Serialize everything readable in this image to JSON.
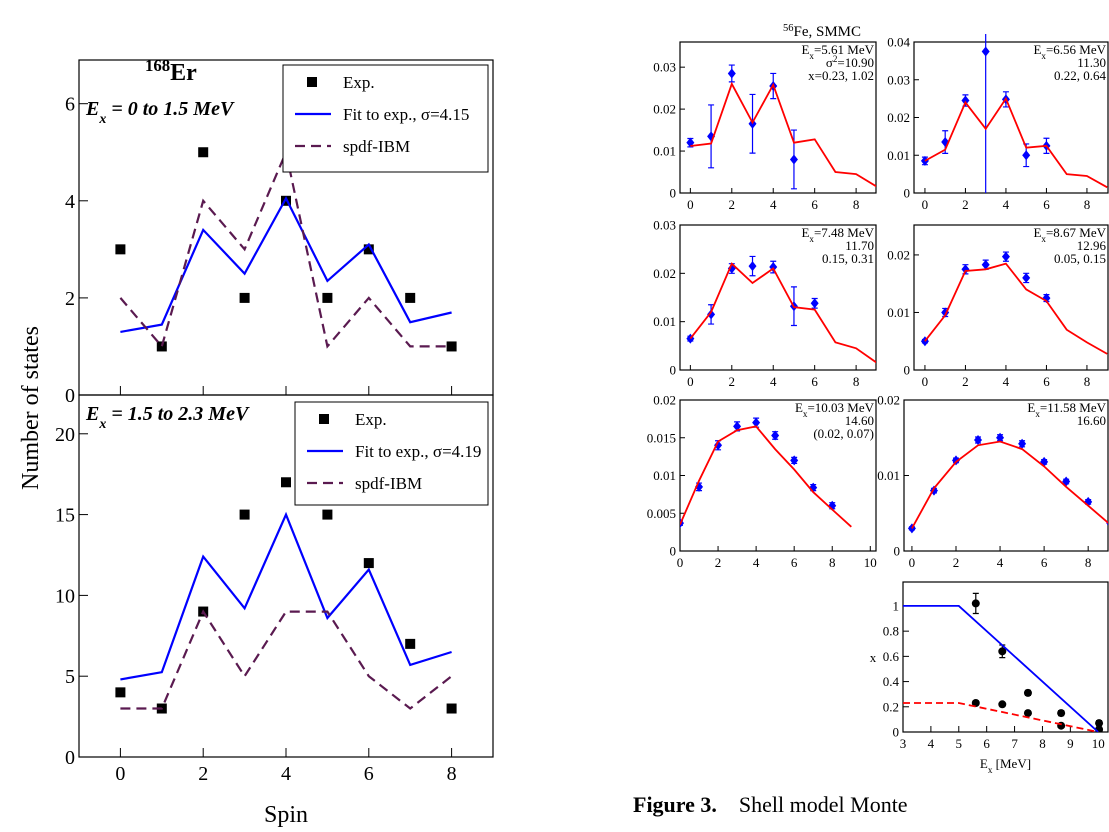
{
  "chart_data": [
    {
      "type": "line",
      "title": {
        "parts": [
          {
            "text": "168",
            "shift": "sup"
          },
          {
            "text": "Er"
          }
        ]
      },
      "annotations": [
        {
          "parts": [
            {
              "text": "E"
            },
            {
              "text": "x",
              "shift": "sub"
            },
            {
              "text": " = 0 to 1.5 MeV"
            }
          ]
        }
      ],
      "ylabel": "Number of states",
      "x": [
        0,
        1,
        2,
        3,
        4,
        5,
        6,
        7,
        8
      ],
      "xlim": [
        -1,
        9
      ],
      "xticks": [
        0,
        2,
        4,
        6,
        8
      ],
      "show_xtick_labels": false,
      "ylim": [
        0,
        6.9
      ],
      "yticks": [
        0,
        2,
        4,
        6
      ],
      "legend": "upper right",
      "series": [
        {
          "name": "Exp.",
          "color": "#000000",
          "style": "markers",
          "marker": "square",
          "values": [
            3,
            1,
            5,
            2,
            4,
            2,
            3,
            2,
            1
          ]
        },
        {
          "name": "Fit to exp., σ=4.15",
          "color": "#0000ff",
          "style": "solid",
          "values": [
            1.3,
            1.45,
            3.4,
            2.5,
            4.05,
            2.35,
            3.1,
            1.5,
            1.7
          ]
        },
        {
          "name": "spdf-IBM",
          "color": "#5a1a50",
          "style": "dashed",
          "values": [
            2,
            1,
            4,
            3,
            5,
            1,
            2,
            1,
            1
          ]
        }
      ]
    },
    {
      "type": "line",
      "annotations": [
        {
          "parts": [
            {
              "text": "E"
            },
            {
              "text": "x",
              "shift": "sub"
            },
            {
              "text": " = 1.5 to 2.3 MeV"
            }
          ]
        }
      ],
      "xlabel": "Spin",
      "x": [
        0,
        1,
        2,
        3,
        4,
        5,
        6,
        7,
        8
      ],
      "xlim": [
        -1,
        9
      ],
      "xticks": [
        0,
        2,
        4,
        6,
        8
      ],
      "ylim": [
        0,
        22.4
      ],
      "yticks": [
        0,
        5,
        10,
        15,
        20
      ],
      "legend": "upper right",
      "series": [
        {
          "name": "Exp.",
          "color": "#000000",
          "style": "markers",
          "marker": "square",
          "values": [
            4,
            3,
            9,
            15,
            17,
            15,
            12,
            7,
            3
          ]
        },
        {
          "name": "Fit to exp., σ=4.19",
          "color": "#0000ff",
          "style": "solid",
          "values": [
            4.8,
            5.25,
            12.4,
            9.2,
            15,
            8.6,
            11.6,
            5.7,
            6.5
          ]
        },
        {
          "name": "spdf-IBM",
          "color": "#5a1a50",
          "style": "dashed",
          "values": [
            3,
            3,
            9,
            5,
            9,
            9,
            5,
            3,
            5
          ]
        }
      ]
    },
    {
      "type": "line",
      "annotations": [
        {
          "parts": [
            {
              "text": "E"
            },
            {
              "text": "x",
              "shift": "sub"
            },
            {
              "text": "=5.61 MeV"
            }
          ]
        },
        {
          "parts": [
            {
              "text": "σ"
            },
            {
              "text": "2",
              "shift": "sup"
            },
            {
              "text": "=10.90"
            }
          ]
        },
        {
          "parts": [
            {
              "text": "x=0.23, 1.02"
            }
          ]
        }
      ],
      "xlim": [
        -0.5,
        8.96
      ],
      "xticks": [
        0,
        2,
        4,
        6,
        8
      ],
      "ylim": [
        0,
        0.036
      ],
      "yticks": [
        0,
        0.01,
        0.02,
        0.03
      ],
      "series": [
        {
          "color": "#0000ff",
          "style": "markers",
          "marker": "diamond",
          "x": [
            0,
            1,
            2,
            3,
            4,
            5
          ],
          "values": [
            0.012,
            0.0135,
            0.0285,
            0.0165,
            0.0255,
            0.008
          ],
          "errors": [
            0.001,
            0.0075,
            0.002,
            0.007,
            0.003,
            0.007
          ]
        },
        {
          "color": "#ff0000",
          "style": "solid",
          "x": [
            0,
            1,
            2,
            3,
            4,
            5,
            6,
            7,
            8,
            9
          ],
          "values": [
            0.0112,
            0.0118,
            0.026,
            0.0168,
            0.0258,
            0.012,
            0.0128,
            0.005,
            0.0045,
            0.0015
          ]
        }
      ]
    },
    {
      "type": "line",
      "annotations": [
        {
          "parts": [
            {
              "text": "E"
            },
            {
              "text": "x",
              "shift": "sub"
            },
            {
              "text": "=6.56 MeV"
            }
          ]
        },
        {
          "parts": [
            {
              "text": "11.30"
            }
          ]
        },
        {
          "parts": [
            {
              "text": "0.22, 0.64"
            }
          ]
        }
      ],
      "xlim": [
        -0.54,
        9.04
      ],
      "xticks": [
        0,
        2,
        4,
        6,
        8
      ],
      "ylim": [
        0,
        0.04
      ],
      "yticks": [
        0,
        0.01,
        0.02,
        0.03,
        0.04
      ],
      "series": [
        {
          "color": "#0000ff",
          "style": "markers",
          "marker": "diamond",
          "x": [
            0,
            1,
            2,
            3,
            4,
            5,
            6
          ],
          "values": [
            0.0085,
            0.0135,
            0.0245,
            0.0375,
            0.0248,
            0.01,
            0.0125
          ],
          "errors": [
            0.001,
            0.003,
            0.0015,
            0.038,
            0.002,
            0.003,
            0.002
          ]
        },
        {
          "color": "#ff0000",
          "style": "solid",
          "x": [
            0,
            1,
            2,
            3,
            4,
            5,
            6,
            7,
            8,
            9
          ],
          "values": [
            0.0085,
            0.0115,
            0.024,
            0.017,
            0.025,
            0.012,
            0.0125,
            0.005,
            0.0045,
            0.0015
          ]
        }
      ]
    },
    {
      "type": "line",
      "annotations": [
        {
          "parts": [
            {
              "text": "E"
            },
            {
              "text": "x",
              "shift": "sub"
            },
            {
              "text": "=7.48 MeV"
            }
          ]
        },
        {
          "parts": [
            {
              "text": "11.70"
            }
          ]
        },
        {
          "parts": [
            {
              "text": "0.15, 0.31"
            }
          ]
        }
      ],
      "xlim": [
        -0.5,
        8.96
      ],
      "xticks": [
        0,
        2,
        4,
        6,
        8
      ],
      "ylim": [
        0,
        0.03
      ],
      "yticks": [
        0,
        0.01,
        0.02,
        0.03
      ],
      "series": [
        {
          "color": "#0000ff",
          "style": "markers",
          "marker": "diamond",
          "x": [
            0,
            1,
            2,
            3,
            4,
            5,
            6
          ],
          "values": [
            0.0065,
            0.0115,
            0.021,
            0.0215,
            0.0213,
            0.0132,
            0.0138
          ],
          "errors": [
            0.0005,
            0.002,
            0.001,
            0.002,
            0.0012,
            0.004,
            0.001
          ]
        },
        {
          "color": "#ff0000",
          "style": "solid",
          "x": [
            0,
            1,
            2,
            3,
            4,
            5,
            6,
            7,
            8,
            9
          ],
          "values": [
            0.0065,
            0.012,
            0.022,
            0.018,
            0.021,
            0.013,
            0.0125,
            0.0057,
            0.0045,
            0.0015
          ]
        }
      ]
    },
    {
      "type": "line",
      "annotations": [
        {
          "parts": [
            {
              "text": "E"
            },
            {
              "text": "x",
              "shift": "sub"
            },
            {
              "text": "=8.67 MeV"
            }
          ]
        },
        {
          "parts": [
            {
              "text": "12.96"
            }
          ]
        },
        {
          "parts": [
            {
              "text": "0.05, 0.15"
            }
          ]
        }
      ],
      "xlim": [
        -0.54,
        9.04
      ],
      "xticks": [
        0,
        2,
        4,
        6,
        8
      ],
      "ylim": [
        0,
        0.0252
      ],
      "yticks": [
        0,
        0.01,
        0.02
      ],
      "series": [
        {
          "color": "#0000ff",
          "style": "markers",
          "marker": "diamond",
          "x": [
            0,
            1,
            2,
            3,
            4,
            5,
            6
          ],
          "values": [
            0.005,
            0.01,
            0.0175,
            0.0183,
            0.0197,
            0.016,
            0.0125
          ],
          "errors": [
            0.0003,
            0.0007,
            0.0008,
            0.0008,
            0.0008,
            0.0008,
            0.0006
          ]
        },
        {
          "color": "#ff0000",
          "style": "solid",
          "x": [
            0,
            1,
            2,
            3,
            4,
            5,
            6,
            7,
            8,
            9
          ],
          "values": [
            0.005,
            0.0095,
            0.0172,
            0.0175,
            0.0185,
            0.014,
            0.012,
            0.007,
            0.0048,
            0.0028
          ]
        }
      ]
    },
    {
      "type": "line",
      "annotations": [
        {
          "parts": [
            {
              "text": "E"
            },
            {
              "text": "x",
              "shift": "sub"
            },
            {
              "text": "=10.03 MeV"
            }
          ]
        },
        {
          "parts": [
            {
              "text": "14.60"
            }
          ]
        },
        {
          "parts": [
            {
              "text": "(0.02, 0.07)"
            }
          ]
        }
      ],
      "xlim": [
        0,
        10.3
      ],
      "xticks": [
        0,
        2,
        4,
        6,
        8,
        10
      ],
      "ylim": [
        0,
        0.02
      ],
      "yticks": [
        0,
        0.005,
        0.01,
        0.015,
        0.02
      ],
      "series": [
        {
          "color": "#0000ff",
          "style": "markers",
          "marker": "diamond",
          "x": [
            0,
            1,
            2,
            3,
            4,
            5,
            6,
            7,
            8
          ],
          "values": [
            0.0037,
            0.0085,
            0.014,
            0.0165,
            0.017,
            0.0153,
            0.012,
            0.0084,
            0.006
          ],
          "errors": [
            0.0003,
            0.0005,
            0.0006,
            0.0006,
            0.0006,
            0.0005,
            0.0004,
            0.0004,
            0.0004
          ]
        },
        {
          "color": "#ff0000",
          "style": "solid",
          "x": [
            0,
            1,
            2,
            3,
            4,
            5,
            6,
            7,
            8,
            9
          ],
          "values": [
            0.0035,
            0.0093,
            0.0145,
            0.016,
            0.0165,
            0.0135,
            0.0108,
            0.0078,
            0.0055,
            0.0032
          ]
        }
      ]
    },
    {
      "type": "line",
      "annotations": [
        {
          "parts": [
            {
              "text": "E"
            },
            {
              "text": "x",
              "shift": "sub"
            },
            {
              "text": "=11.58 MeV"
            }
          ]
        },
        {
          "parts": [
            {
              "text": "16.60"
            }
          ]
        }
      ],
      "xlim": [
        -0.36,
        8.9
      ],
      "xticks": [
        0,
        2,
        4,
        6,
        8
      ],
      "ylim": [
        0,
        0.02
      ],
      "yticks": [
        0,
        0.01,
        0.02
      ],
      "series": [
        {
          "color": "#0000ff",
          "style": "markers",
          "marker": "diamond",
          "x": [
            0,
            1,
            2,
            3,
            4,
            5,
            6,
            7,
            8,
            9
          ],
          "values": [
            0.003,
            0.008,
            0.012,
            0.0147,
            0.015,
            0.0142,
            0.0118,
            0.0092,
            0.0065,
            0.0037
          ],
          "errors": [
            0.0002,
            0.0003,
            0.0003,
            0.0004,
            0.0004,
            0.0004,
            0.0003,
            0.0003,
            0.0003,
            0.0002
          ]
        },
        {
          "color": "#ff0000",
          "style": "solid",
          "x": [
            0,
            1,
            2,
            3,
            4,
            5,
            6,
            7,
            8,
            9
          ],
          "values": [
            0.003,
            0.0083,
            0.0118,
            0.014,
            0.0145,
            0.0135,
            0.0112,
            0.0085,
            0.006,
            0.0035
          ]
        }
      ]
    },
    {
      "type": "line",
      "ylabel": "x",
      "xlabel": {
        "parts": [
          {
            "text": "E"
          },
          {
            "text": "x",
            "shift": "sub"
          },
          {
            "text": " [MeV]"
          }
        ]
      },
      "xlim": [
        3,
        10.35
      ],
      "xticks": [
        3,
        4,
        5,
        6,
        7,
        8,
        9,
        10
      ],
      "ylim": [
        0,
        1.19
      ],
      "yticks": [
        0,
        0.2,
        0.4,
        0.6,
        0.8,
        1
      ],
      "series": [
        {
          "color": "#000000",
          "style": "markers",
          "marker": "circle",
          "x": [
            5.61,
            6.56,
            7.48,
            8.67,
            10.03
          ],
          "values": [
            1.02,
            0.64,
            0.31,
            0.15,
            0.07
          ],
          "errors": [
            0.08,
            0.05,
            0.02,
            0.02,
            0.02
          ]
        },
        {
          "color": "#000000",
          "style": "markers",
          "marker": "circle",
          "x": [
            5.61,
            6.56,
            7.48,
            8.67,
            10.03
          ],
          "values": [
            0.23,
            0.22,
            0.15,
            0.05,
            0.02
          ],
          "errors": [
            0.015,
            0.01,
            0.01,
            0.01,
            0.01
          ]
        },
        {
          "color": "#0000ff",
          "style": "solid",
          "x": [
            3,
            5,
            10
          ],
          "values": [
            1,
            1,
            0
          ]
        },
        {
          "color": "#ff0000",
          "style": "dashed",
          "x": [
            3,
            5,
            10
          ],
          "values": [
            0.23,
            0.23,
            0
          ]
        }
      ]
    }
  ],
  "right_title": {
    "parts": [
      {
        "text": "56",
        "shift": "sup"
      },
      {
        "text": "Fe, SMMC"
      }
    ]
  },
  "caption": {
    "label": "Figure 3.",
    "text": "Shell model Monte"
  }
}
